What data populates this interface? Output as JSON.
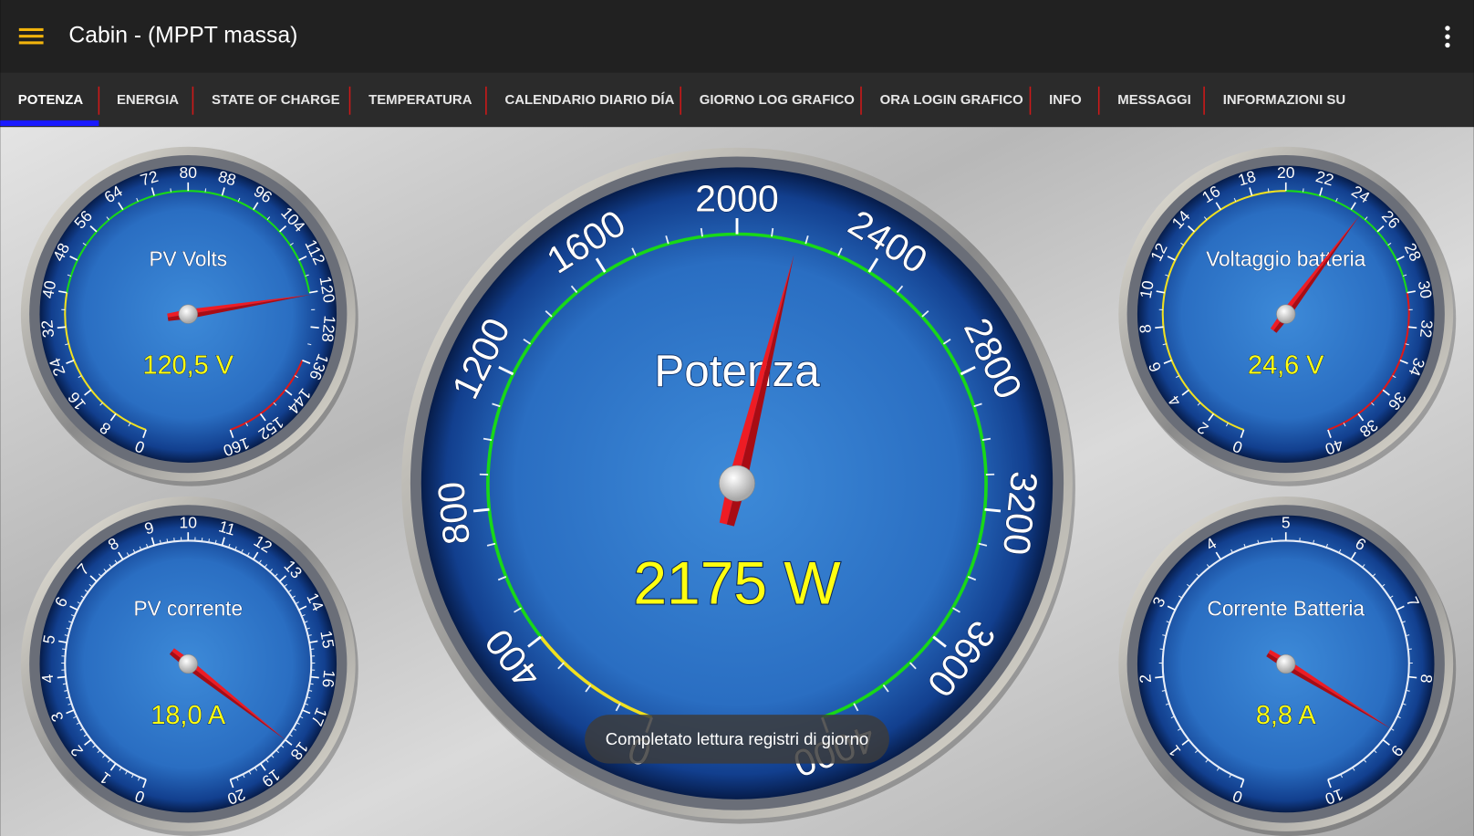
{
  "app_bar": {
    "title": "Cabin - (MPPT massa)"
  },
  "tabs": [
    {
      "label": "POTENZA",
      "selected": true
    },
    {
      "label": "ENERGIA",
      "selected": false
    },
    {
      "label": "STATE OF CHARGE",
      "selected": false
    },
    {
      "label": "TEMPERATURA",
      "selected": false
    },
    {
      "label": "CALENDARIO DIARIO DÍA",
      "selected": false
    },
    {
      "label": "GIORNO LOG GRAFICO",
      "selected": false
    },
    {
      "label": "ORA LOGIN GRAFICO",
      "selected": false
    },
    {
      "label": "INFO",
      "selected": false
    },
    {
      "label": "MESSAGGI",
      "selected": false
    },
    {
      "label": "INFORMAZIONI SU",
      "selected": false
    }
  ],
  "gauges": [
    {
      "title": "PV Volts",
      "readout": "120,5 V",
      "value": 120.5,
      "ticks": [
        0,
        8,
        16,
        24,
        32,
        40,
        48,
        56,
        64,
        72,
        80,
        88,
        96,
        104,
        112,
        120,
        128,
        136,
        144,
        152,
        160
      ]
    },
    {
      "title": "PV corrente",
      "readout": "18,0 A",
      "value": 18.0,
      "ticks": [
        0,
        1,
        2,
        3,
        4,
        5,
        6,
        7,
        8,
        9,
        10,
        11,
        12,
        13,
        14,
        15,
        16,
        17,
        18,
        19,
        20
      ]
    },
    {
      "title": "Potenza",
      "readout": "2175 W",
      "value": 2175,
      "ticks": [
        0,
        400,
        800,
        1200,
        1600,
        2000,
        2400,
        2800,
        3200,
        3600,
        4000
      ]
    },
    {
      "title": "Voltaggio batteria",
      "readout": "24,6 V",
      "value": 24.6,
      "ticks": [
        0,
        2,
        4,
        6,
        8,
        10,
        12,
        14,
        16,
        18,
        20,
        22,
        24,
        26,
        28,
        30,
        32,
        34,
        36,
        38,
        40
      ]
    },
    {
      "title": "Corrente Batteria",
      "readout": "8,8 A",
      "value": 8.8,
      "ticks": [
        0,
        1,
        2,
        3,
        4,
        5,
        6,
        7,
        8,
        9,
        10
      ]
    }
  ],
  "toast": "Completato lettura registri di giorno"
}
